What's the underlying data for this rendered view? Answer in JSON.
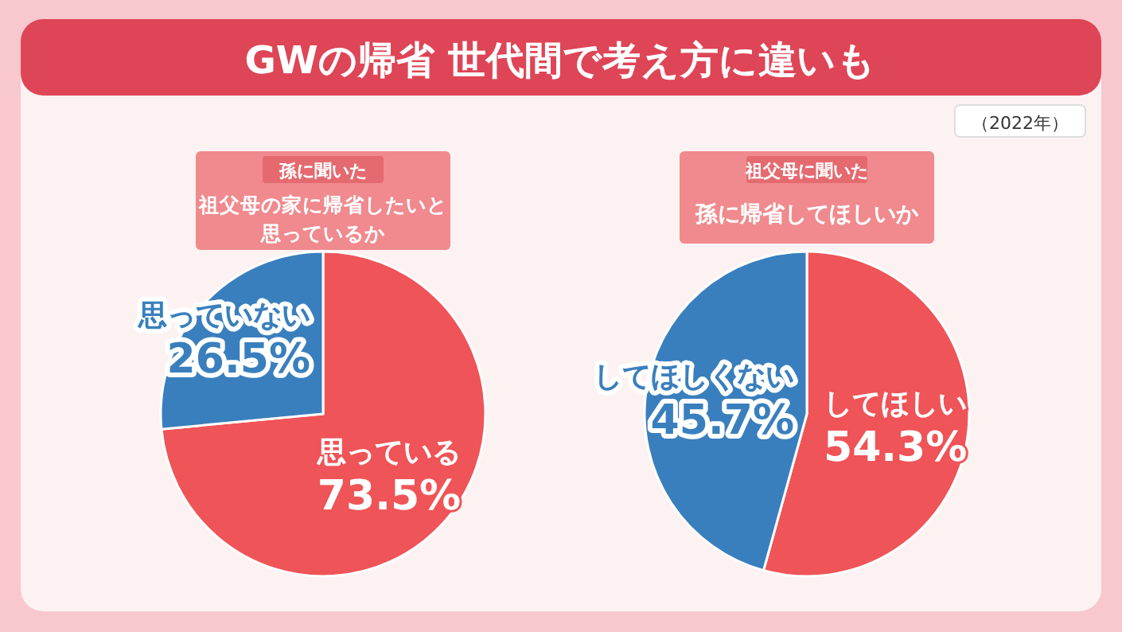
{
  "chart_data": [
    {
      "type": "other",
      "title": "GWの帰省 世代間で考え方に違いも",
      "annotations": [
        "（2022年）"
      ]
    },
    {
      "type": "pie",
      "subtitle": "孫に聞いた",
      "title": "祖父母の家に帰省したいと思っているか",
      "categories": [
        "思っている",
        "思っていない"
      ],
      "values": [
        73.5,
        26.5
      ],
      "value_labels": [
        "73.5%",
        "26.5%"
      ],
      "colors": [
        "#ef5458",
        "#3a7fbd"
      ]
    },
    {
      "type": "pie",
      "subtitle": "祖父母に聞いた",
      "title": "孫に帰省してほしいか",
      "categories": [
        "してほしい",
        "してほしくない"
      ],
      "values": [
        54.3,
        45.7
      ],
      "value_labels": [
        "54.3%",
        "45.7%"
      ],
      "colors": [
        "#ef5458",
        "#3a7fbd"
      ]
    }
  ]
}
